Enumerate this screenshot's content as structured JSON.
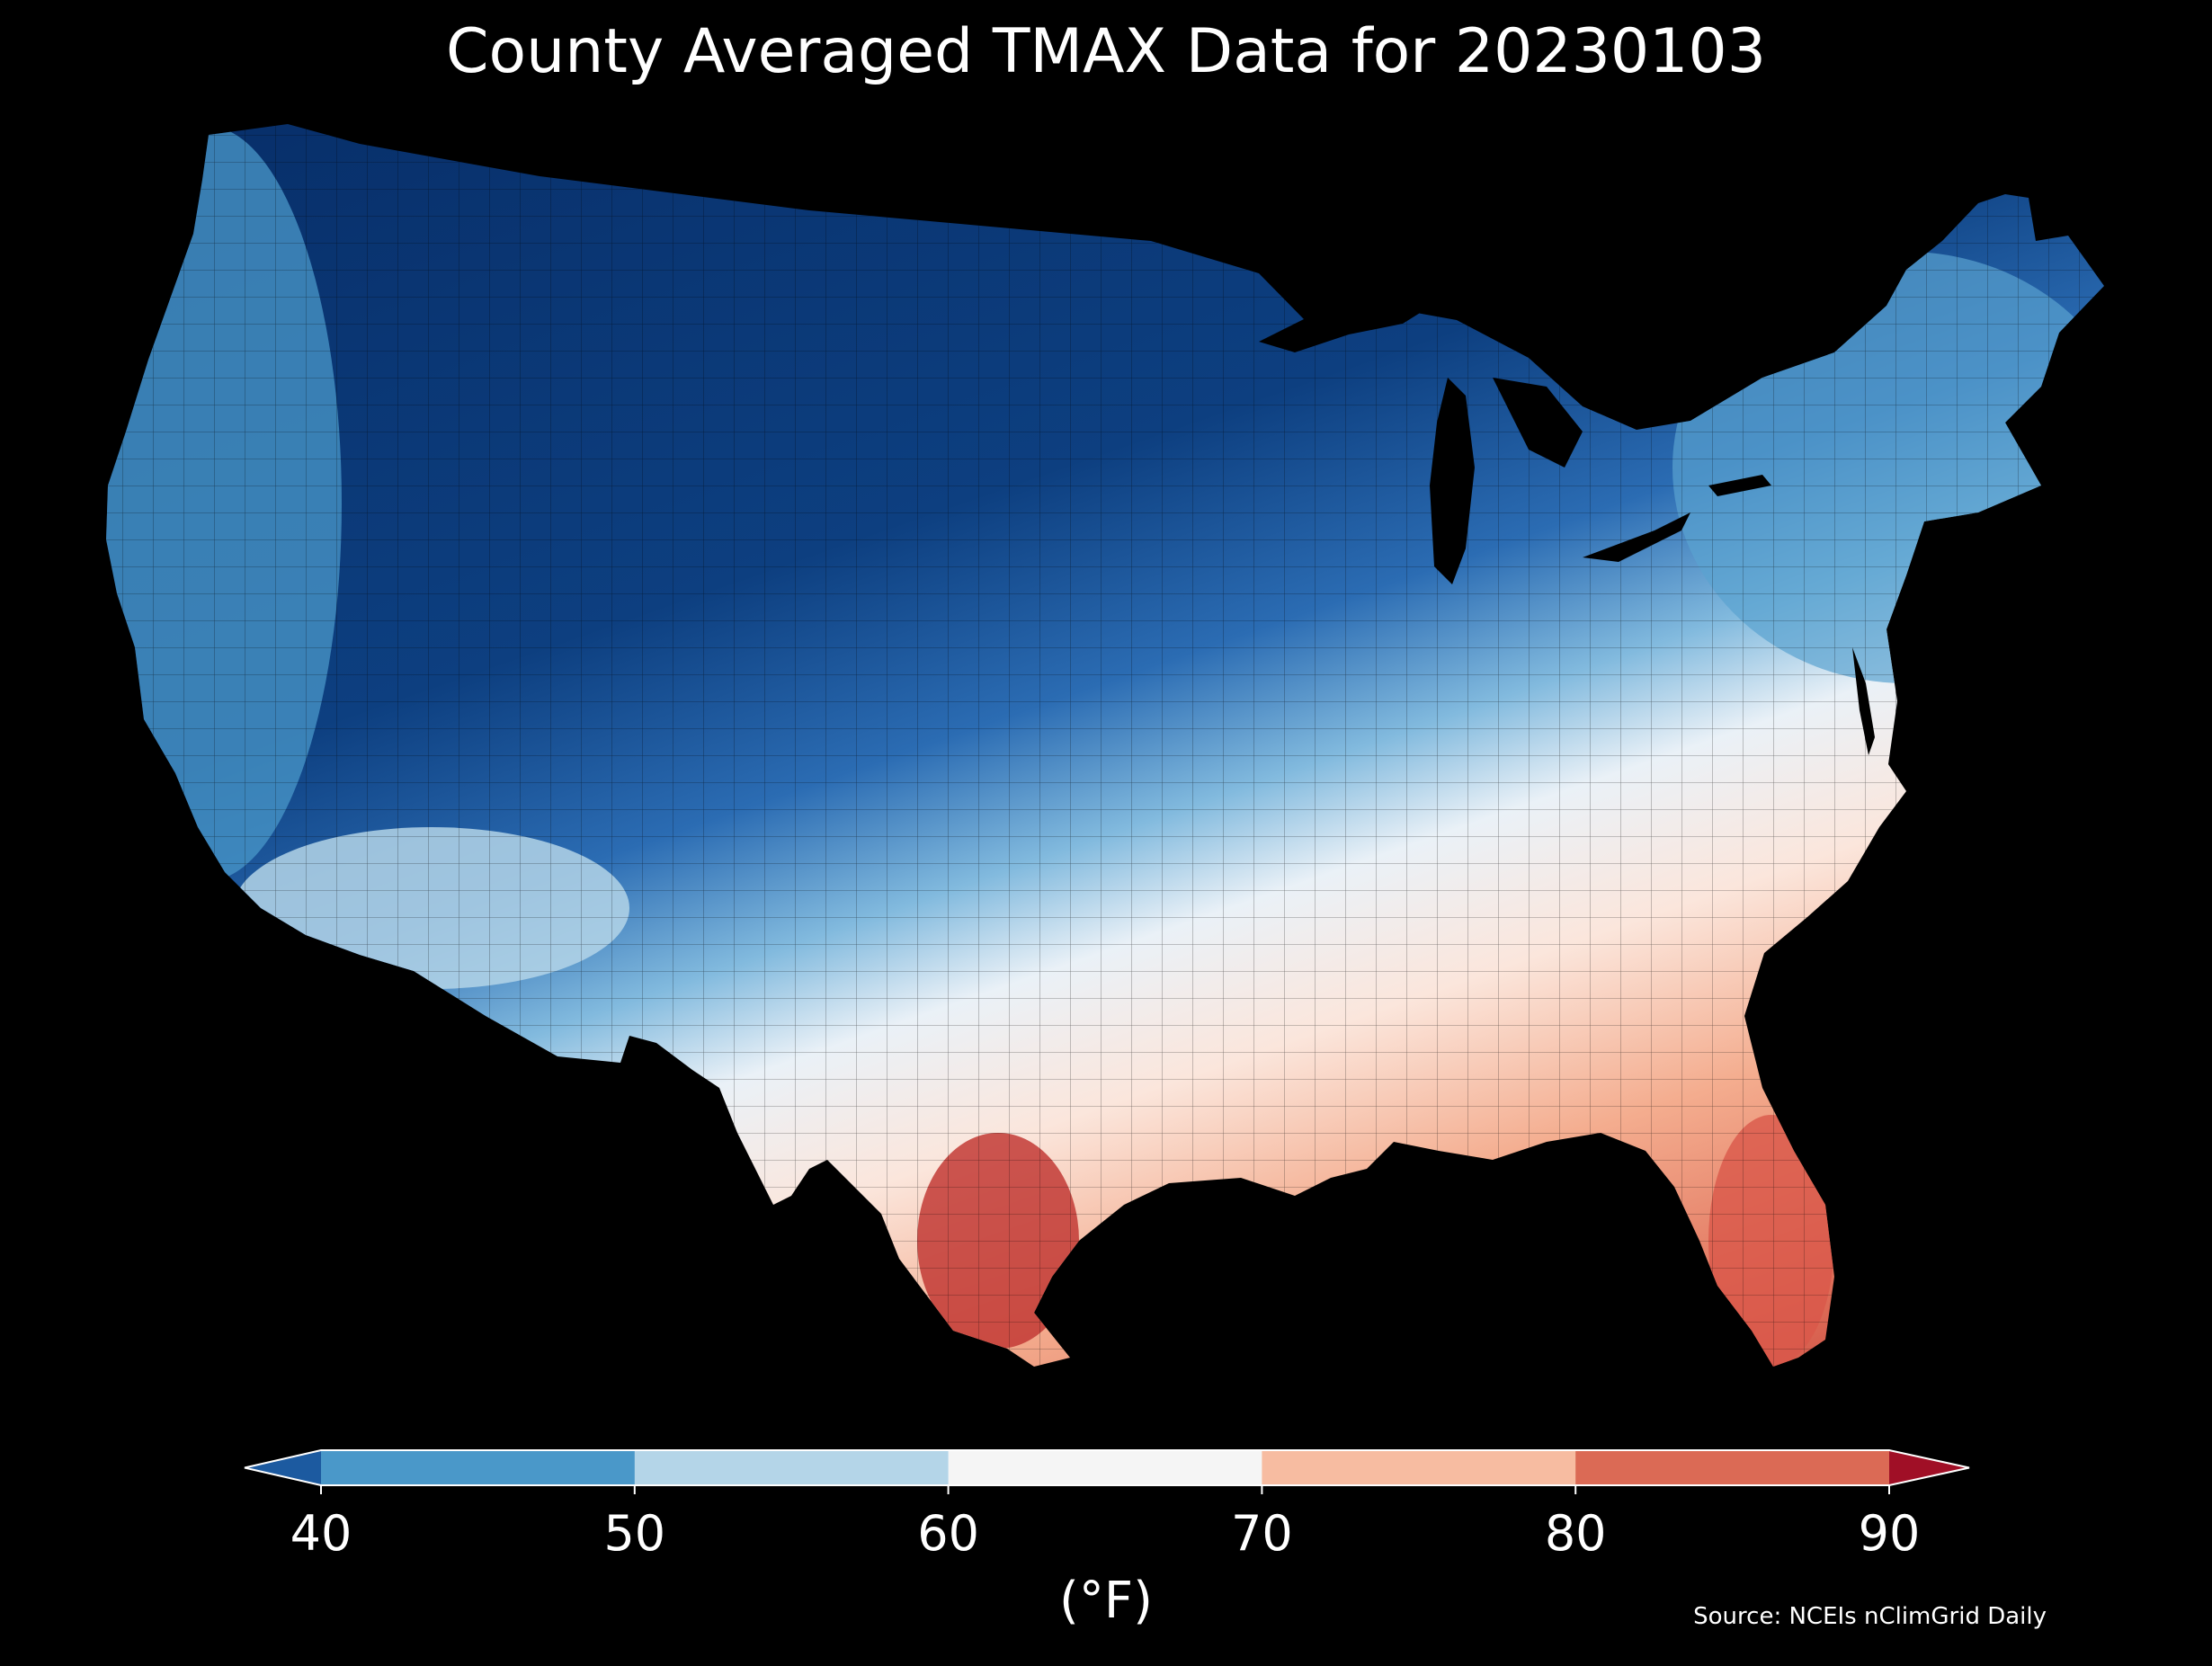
{
  "title": "County Averaged TMAX Data for 20230103",
  "colorbar": {
    "unit_label": "(°F)",
    "ticks": [
      "40",
      "50",
      "60",
      "70",
      "80",
      "90"
    ],
    "bins": [
      {
        "range": "<40",
        "color": "#1c5aa0"
      },
      {
        "range": "40-50",
        "color": "#4a98c9"
      },
      {
        "range": "50-60",
        "color": "#b4d5e8"
      },
      {
        "range": "60-70",
        "color": "#f5f5f5"
      },
      {
        "range": "70-80",
        "color": "#f7bca1"
      },
      {
        "range": "80-90",
        "color": "#db6a55"
      },
      {
        "range": ">90",
        "color": "#a00f26"
      }
    ],
    "extend": "both"
  },
  "source": "Source: NCEIs nClimGrid Daily",
  "map": {
    "region": "Contiguous United States",
    "variable": "TMAX",
    "palette": {
      "very_cold": "#08306b",
      "cold": "#1c5aa0",
      "cool": "#4a98c9",
      "mild": "#b4d5e8",
      "neutral": "#f5f5f5",
      "warm": "#f7bca1",
      "hot": "#db6a55",
      "very_hot": "#c23a35"
    },
    "background": "#000000"
  }
}
